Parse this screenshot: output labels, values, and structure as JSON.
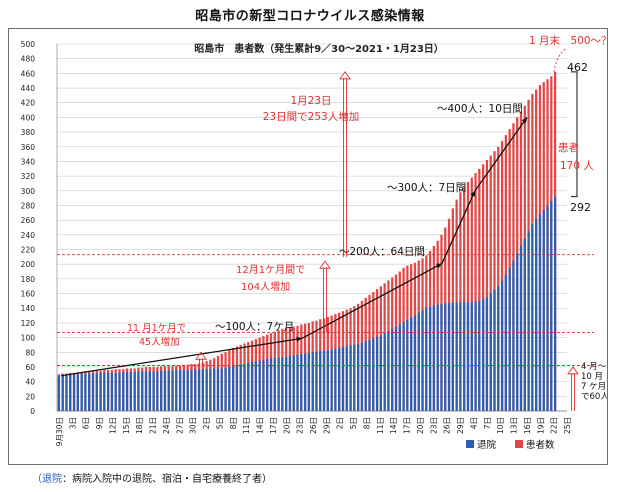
{
  "page": {
    "title": "昭島市の新型コロナウイルス感染情報",
    "footnote_label": "（退院",
    "footnote_text": "：病院入院中の退院、宿泊・自宅療養終了者）"
  },
  "chart_data": {
    "type": "bar",
    "title": "昭島市　患者数（発生累計9／30～2021・1月23日）",
    "ylim": [
      0,
      500
    ],
    "yticks": [
      0,
      20,
      40,
      60,
      80,
      100,
      120,
      140,
      160,
      180,
      200,
      220,
      240,
      260,
      280,
      300,
      320,
      340,
      360,
      380,
      400,
      420,
      440,
      460,
      480,
      500
    ],
    "grid": true,
    "legend": "bottom-right",
    "colors": {
      "recovered": "#2c5fb0",
      "patients": "#e04848",
      "note": "#e03030",
      "arrow": "#111111"
    },
    "x_ticklabels": [
      "9月30日",
      "3日",
      "6日",
      "9日",
      "12日",
      "15日",
      "18日",
      "21日",
      "24日",
      "27日",
      "30日",
      "2日",
      "5日",
      "8日",
      "11日",
      "14日",
      "17日",
      "20日",
      "23日",
      "26日",
      "29日",
      "2日",
      "5日",
      "8日",
      "11日",
      "14日",
      "17日",
      "20日",
      "23日",
      "26日",
      "29日",
      "4日",
      "7日",
      "10日",
      "13日",
      "16日",
      "19日",
      "22日",
      "25日"
    ],
    "series": [
      {
        "name": "退院",
        "values": [
          48,
          48,
          49,
          50,
          50,
          50,
          51,
          51,
          51,
          51,
          51,
          52,
          52,
          52,
          52,
          52,
          52,
          53,
          53,
          53,
          53,
          54,
          54,
          54,
          54,
          54,
          54,
          55,
          55,
          55,
          55,
          56,
          56,
          56,
          56,
          56,
          56,
          57,
          57,
          57,
          57,
          58,
          58,
          58,
          59,
          60,
          61,
          62,
          63,
          64,
          66,
          67,
          68,
          69,
          70,
          71,
          72,
          72,
          73,
          73,
          74,
          75,
          76,
          77,
          78,
          78,
          79,
          80,
          81,
          82,
          82,
          83,
          84,
          85,
          86,
          87,
          88,
          89,
          90,
          91,
          93,
          95,
          97,
          99,
          101,
          103,
          106,
          109,
          112,
          115,
          118,
          121,
          124,
          127,
          130,
          134,
          137,
          140,
          142,
          144,
          145,
          146,
          147,
          147,
          148,
          148,
          148,
          148,
          148,
          149,
          149,
          150,
          152,
          155,
          160,
          165,
          170,
          178,
          186,
          195,
          205,
          215,
          225,
          235,
          245,
          255,
          262,
          268,
          274,
          280,
          286,
          292
        ]
      },
      {
        "name": "患者数",
        "values": [
          50,
          51,
          51,
          52,
          52,
          53,
          53,
          54,
          54,
          55,
          55,
          55,
          56,
          56,
          56,
          57,
          57,
          57,
          58,
          58,
          58,
          59,
          59,
          60,
          60,
          60,
          60,
          61,
          61,
          61,
          61,
          62,
          62,
          63,
          63,
          64,
          64,
          65,
          66,
          68,
          70,
          72,
          75,
          78,
          80,
          84,
          86,
          88,
          90,
          92,
          94,
          96,
          98,
          100,
          102,
          104,
          106,
          108,
          110,
          112,
          113,
          114,
          115,
          116,
          118,
          119,
          120,
          122,
          123,
          125,
          126,
          128,
          130,
          132,
          134,
          136,
          138,
          140,
          143,
          146,
          150,
          154,
          158,
          162,
          166,
          170,
          174,
          178,
          182,
          186,
          190,
          195,
          198,
          200,
          202,
          205,
          208,
          212,
          218,
          225,
          232,
          240,
          250,
          262,
          276,
          288,
          298,
          305,
          312,
          318,
          324,
          330,
          336,
          342,
          348,
          354,
          360,
          368,
          376,
          384,
          392,
          400,
          408,
          416,
          424,
          432,
          438,
          444,
          448,
          452,
          456,
          462
        ]
      }
    ],
    "annotations": {
      "jan23_line1": "1月23日",
      "jan23_line2": "23日間で253人増加",
      "month_end": "1 月末　500～？",
      "val_462": "462",
      "val_292": "292",
      "patients_label_1": "患者",
      "patients_label_2": "170 人",
      "seg_100": "～100人：7ケ月",
      "seg_200": "～200人：64日間",
      "seg_300": "～300人：7日間",
      "seg_400": "～400人：10日間",
      "nov_line1": "11 月1ケ月で",
      "nov_line2": "45人増加",
      "dec_line1": "12月1ケ月間で",
      "dec_line2": "104人増加",
      "apr_lines": [
        "4 月～",
        "10 月",
        "7 ケ月",
        "で60人"
      ]
    }
  }
}
